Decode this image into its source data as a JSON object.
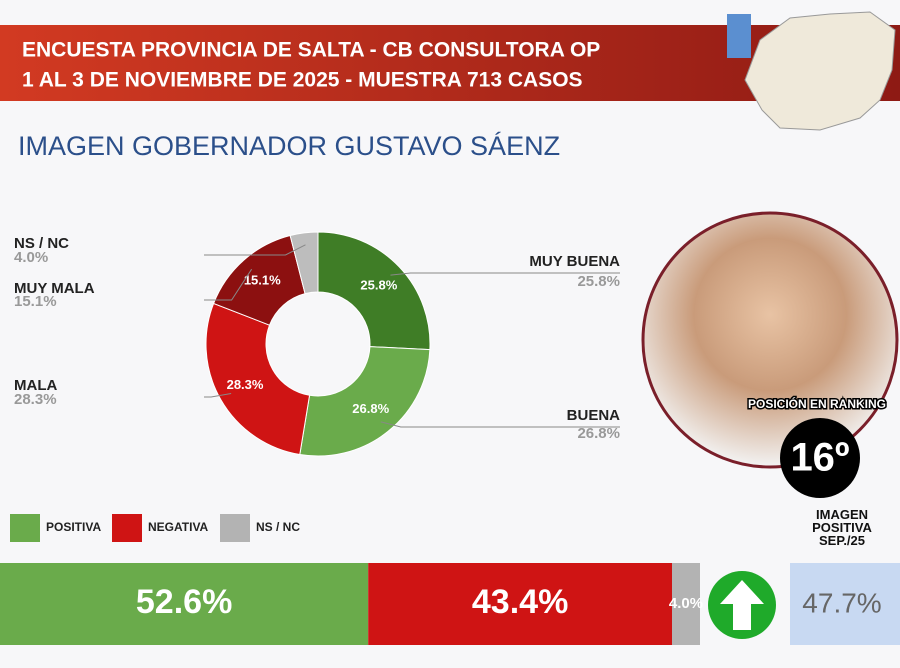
{
  "header": {
    "line1": "ENCUESTA PROVINCIA DE SALTA - CB CONSULTORA OP",
    "line2": "1 AL 3 DE NOVIEMBRE DE 2025 - MUESTRA 713 CASOS"
  },
  "subtitle": "IMAGEN GOBERNADOR  GUSTAVO SÁENZ",
  "ranking": {
    "label": "POSICIÓN EN RANKING",
    "position": "16º"
  },
  "previous": {
    "label": "IMAGEN POSITIVA SEP./25",
    "value": "47.7%"
  },
  "chart_data": [
    {
      "type": "donut",
      "categories": [
        "MUY BUENA",
        "BUENA",
        "MALA",
        "MUY MALA",
        "NS / NC"
      ],
      "values": [
        25.8,
        26.8,
        28.3,
        15.1,
        4.0
      ],
      "value_labels": [
        "25.8%",
        "26.8%",
        "28.3%",
        "15.1%",
        "4.0%"
      ],
      "colors": [
        "#3f7d26",
        "#6aab4b",
        "#cf1414",
        "#8c1010",
        "#bdbdbd"
      ]
    },
    {
      "type": "stacked-bar",
      "orientation": "horizontal",
      "xlim": [
        0,
        100
      ],
      "series": [
        {
          "name": "POSITIVA",
          "color": "#6aab4b",
          "values": [
            52.6
          ],
          "value_labels": [
            "52.6%"
          ]
        },
        {
          "name": "NEGATIVA",
          "color": "#cf1414",
          "values": [
            43.4
          ],
          "value_labels": [
            "43.4%"
          ]
        },
        {
          "name": "NS / NC",
          "color": "#b3b3b3",
          "values": [
            4.0
          ],
          "value_labels": [
            "4.0%"
          ]
        }
      ]
    }
  ]
}
